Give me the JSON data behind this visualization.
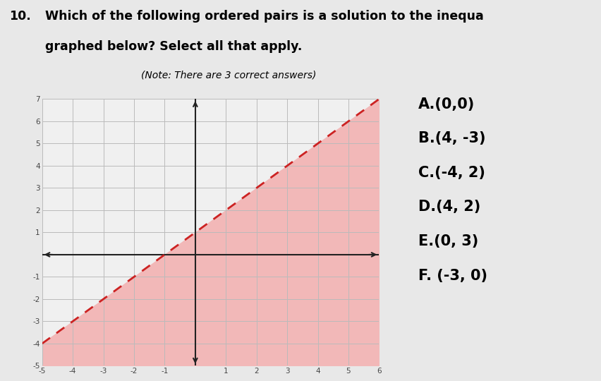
{
  "title_number": "10.",
  "title_line1": "Which of the following ordered pairs is a solution to the inequa",
  "title_line2": "graphed below? Select all that apply.",
  "note": "(Note: There are 3 correct answers)",
  "answers": [
    "A.(0,0)",
    "B.(4, -3)",
    "C.(-4, 2)",
    "D.(4, 2)",
    "E.(0, 3)",
    "F. (-3, 0)"
  ],
  "slope": 1,
  "intercept": 1,
  "xmin": -5,
  "xmax": 6,
  "ymin": -5,
  "ymax": 7,
  "grid_color": "#bbbbbb",
  "shade_color": "#f2b8b8",
  "line_color": "#cc2222",
  "axis_color": "#222222",
  "bg_color": "#e8e8e8",
  "graph_bg": "#f0f0f0",
  "answer_font_size": 15,
  "title_font_size": 12.5
}
